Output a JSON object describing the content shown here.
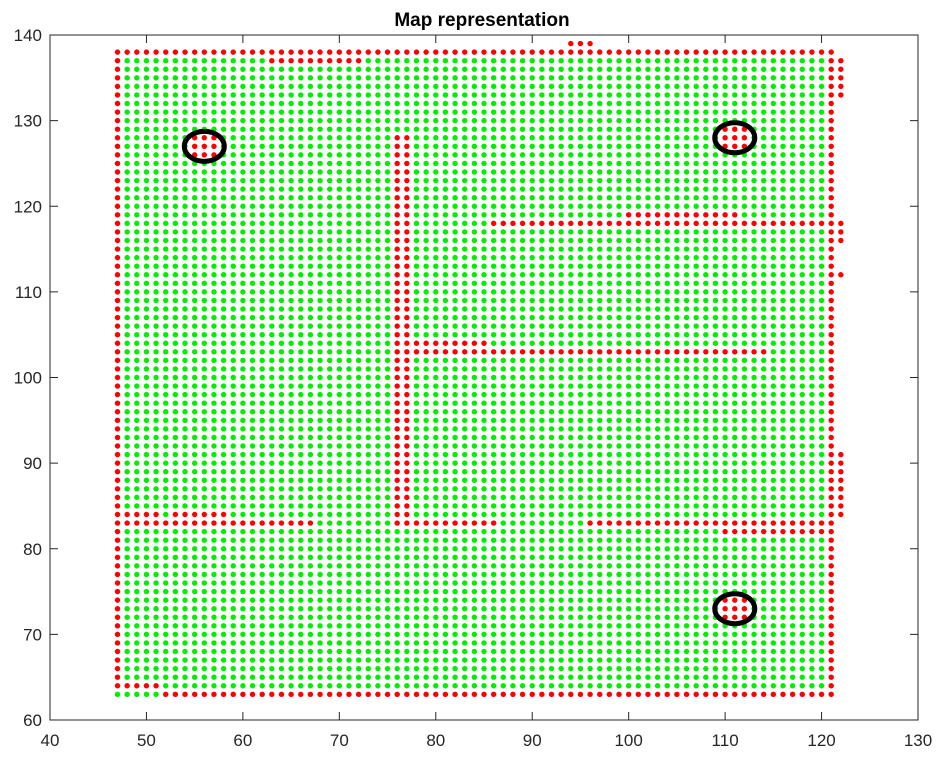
{
  "chart_data": {
    "type": "scatter",
    "title": "Map representation",
    "xlabel": "",
    "ylabel": "",
    "xlim": [
      40,
      130
    ],
    "ylim": [
      60,
      140
    ],
    "xticks": [
      40,
      50,
      60,
      70,
      80,
      90,
      100,
      110,
      120,
      130
    ],
    "yticks": [
      60,
      70,
      80,
      90,
      100,
      110,
      120,
      130,
      140
    ],
    "grid": false,
    "colors": {
      "free": "#00ee00",
      "obstacle": "#ff0000",
      "marker": "#000000"
    },
    "grid_extent": {
      "x": [
        47,
        121
      ],
      "y": [
        63,
        138
      ]
    },
    "series": [
      {
        "role": "free-cells",
        "color": "#00ee00",
        "region": {
          "x": [
            47,
            121
          ],
          "y": [
            63,
            138
          ]
        }
      },
      {
        "role": "obstacle-cells",
        "color": "#ff0000",
        "segments": [
          {
            "x": [
              47,
              121
            ],
            "y": [
              138,
              138
            ]
          },
          {
            "x": [
              63,
              72
            ],
            "y": [
              137,
              137
            ]
          },
          {
            "x": [
              94,
              96
            ],
            "y": [
              139,
              139
            ]
          },
          {
            "x": [
              47,
              47
            ],
            "y": [
              64,
              138
            ]
          },
          {
            "x": [
              48,
              51
            ],
            "y": [
              64,
              64
            ]
          },
          {
            "x": [
              52,
              121
            ],
            "y": [
              63,
              63
            ]
          },
          {
            "x": [
              121,
              121
            ],
            "y": [
              63,
              138
            ]
          },
          {
            "x": [
              122,
              122
            ],
            "y": [
              133,
              137
            ]
          },
          {
            "x": [
              122,
              122
            ],
            "y": [
              116,
              118
            ]
          },
          {
            "x": [
              122,
              122
            ],
            "y": [
              112,
              112
            ]
          },
          {
            "x": [
              122,
              122
            ],
            "y": [
              84,
              91
            ]
          },
          {
            "x": [
              76,
              77
            ],
            "y": [
              83,
              128
            ]
          },
          {
            "x": [
              48,
              67
            ],
            "y": [
              83,
              83
            ]
          },
          {
            "x": [
              48,
              51
            ],
            "y": [
              84,
              84
            ]
          },
          {
            "x": [
              53,
              58
            ],
            "y": [
              84,
              84
            ]
          },
          {
            "x": [
              76,
              86
            ],
            "y": [
              83,
              83
            ]
          },
          {
            "x": [
              96,
              120
            ],
            "y": [
              83,
              83
            ]
          },
          {
            "x": [
              110,
              120
            ],
            "y": [
              82,
              82
            ]
          },
          {
            "x": [
              78,
              85
            ],
            "y": [
              104,
              104
            ]
          },
          {
            "x": [
              78,
              114
            ],
            "y": [
              103,
              103
            ]
          },
          {
            "x": [
              86,
              120
            ],
            "y": [
              118,
              118
            ]
          },
          {
            "x": [
              100,
              111
            ],
            "y": [
              119,
              119
            ]
          }
        ],
        "blocks": [
          {
            "x": [
              55,
              57
            ],
            "y": [
              126,
              128
            ]
          },
          {
            "x": [
              110,
              112
            ],
            "y": [
              127,
              129
            ]
          },
          {
            "x": [
              110,
              112
            ],
            "y": [
              72,
              74
            ]
          }
        ]
      },
      {
        "role": "circle-markers",
        "color": "#000000",
        "points": [
          {
            "x": 56,
            "y": 127
          },
          {
            "x": 111,
            "y": 128
          },
          {
            "x": 111,
            "y": 73
          }
        ]
      }
    ]
  }
}
